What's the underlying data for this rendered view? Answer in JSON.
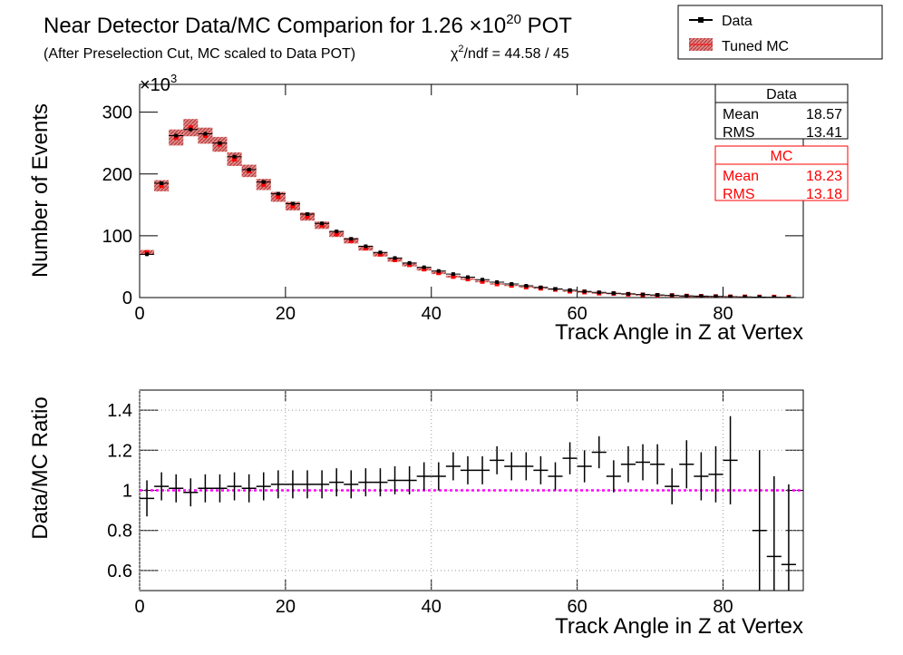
{
  "chart_data": [
    {
      "type": "histogram",
      "title": "Near Detector Data/MC Comparion for 1.26 ×10",
      "title_sup": "20",
      "title_end": " POT",
      "subtitle": "(After Preselection Cut, MC scaled to Data POT)",
      "chi2_symbol": "χ",
      "chi2_sup": "2",
      "chi2_text": "/ndf = 44.58 / 45",
      "y_multiplier": "×10",
      "y_multiplier_sup": "3",
      "xlabel": "Track Angle in Z at Vertex",
      "ylabel": "Number of Events",
      "x": [
        1,
        3,
        5,
        7,
        9,
        11,
        13,
        15,
        17,
        19,
        21,
        23,
        25,
        27,
        29,
        31,
        33,
        35,
        37,
        39,
        41,
        43,
        45,
        47,
        49,
        51,
        53,
        55,
        57,
        59,
        61,
        63,
        65,
        67,
        69,
        71,
        73,
        75,
        77,
        79,
        81,
        83,
        85,
        87,
        89
      ],
      "series": [
        {
          "name": "Data",
          "color": "#000000",
          "values": [
            70,
            185,
            262,
            272,
            265,
            250,
            228,
            207,
            187,
            168,
            152,
            135,
            120,
            107,
            95,
            83,
            73,
            64,
            56,
            49,
            43,
            38,
            33,
            29,
            25,
            22,
            19,
            16.5,
            14,
            12,
            10,
            8.5,
            7,
            6,
            5,
            4.2,
            3.5,
            2.8,
            2.3,
            1.8,
            1.5,
            1.1,
            0.8,
            0.6,
            0.4
          ]
        },
        {
          "name": "Tuned MC",
          "color": "#ff0000",
          "values": [
            73,
            181,
            259,
            275,
            262,
            248,
            224,
            205,
            183,
            163,
            148,
            131,
            117,
            103,
            92,
            80,
            70,
            61,
            53,
            46,
            40,
            34,
            30,
            26,
            22,
            19.6,
            17,
            15,
            13.1,
            10.3,
            8.9,
            7.1,
            6.5,
            5.3,
            4.4,
            3.7,
            3.4,
            2.5,
            2.1,
            1.7,
            1.3,
            1.2,
            1,
            0.9,
            0.6
          ],
          "errors": [
            4,
            9,
            13,
            14,
            13,
            12,
            11,
            10,
            9,
            8,
            7,
            6.5,
            6,
            5,
            4.5,
            4,
            3.5,
            3,
            2.6,
            2.3,
            2,
            1.7,
            1.5,
            1.3,
            1.1,
            1,
            0.9,
            0.8,
            0.7,
            0.5,
            0.45,
            0.35,
            0.3,
            0.27,
            0.22,
            0.2,
            0.17,
            0.13,
            0.1,
            0.1,
            0.1,
            0.1,
            0.1,
            0.1,
            0.1
          ]
        }
      ],
      "xlim": [
        0,
        91
      ],
      "xticks": [
        0,
        20,
        40,
        60,
        80
      ],
      "ylim": [
        0,
        345
      ],
      "yticks": [
        0,
        100,
        200,
        300
      ],
      "stats": [
        {
          "name": "Data",
          "color": "#000000",
          "rows": [
            [
              "Mean",
              "18.57"
            ],
            [
              "RMS",
              "13.41"
            ]
          ]
        },
        {
          "name": "MC",
          "color": "#ff0000",
          "rows": [
            [
              "Mean",
              "18.23"
            ],
            [
              "RMS",
              "13.18"
            ]
          ]
        }
      ]
    },
    {
      "type": "errorbar",
      "xlabel": "Track Angle in Z at Vertex",
      "ylabel": "Data/MC Ratio",
      "x": [
        1,
        3,
        5,
        7,
        9,
        11,
        13,
        15,
        17,
        19,
        21,
        23,
        25,
        27,
        29,
        31,
        33,
        35,
        37,
        39,
        41,
        43,
        45,
        47,
        49,
        51,
        53,
        55,
        57,
        59,
        61,
        63,
        65,
        67,
        69,
        71,
        73,
        75,
        77,
        79,
        81,
        83,
        85,
        87,
        89
      ],
      "values": [
        0.96,
        1.02,
        1.01,
        0.99,
        1.01,
        1.01,
        1.02,
        1.01,
        1.02,
        1.03,
        1.03,
        1.03,
        1.03,
        1.04,
        1.03,
        1.04,
        1.04,
        1.05,
        1.05,
        1.07,
        1.07,
        1.12,
        1.1,
        1.1,
        1.15,
        1.12,
        1.12,
        1.1,
        1.07,
        1.16,
        1.12,
        1.19,
        1.07,
        1.13,
        1.14,
        1.13,
        1.02,
        1.13,
        1.07,
        1.08,
        1.15,
        null,
        0.8,
        0.67,
        0.63
      ],
      "errors": [
        0.09,
        0.07,
        0.07,
        0.07,
        0.07,
        0.07,
        0.07,
        0.07,
        0.07,
        0.07,
        0.07,
        0.07,
        0.07,
        0.07,
        0.07,
        0.07,
        0.07,
        0.07,
        0.07,
        0.07,
        0.07,
        0.07,
        0.07,
        0.07,
        0.07,
        0.07,
        0.07,
        0.07,
        0.07,
        0.08,
        0.08,
        0.08,
        0.08,
        0.09,
        0.09,
        0.1,
        0.09,
        0.12,
        0.12,
        0.14,
        0.22,
        null,
        0.4,
        0.4,
        0.4
      ],
      "color": "#000000",
      "reference_line": 1,
      "reference_color": "#ff00ff",
      "xlim": [
        0,
        91
      ],
      "xticks": [
        0,
        20,
        40,
        60,
        80
      ],
      "ylim": [
        0.5,
        1.5
      ],
      "yticks": [
        0.6,
        0.8,
        1,
        1.2,
        1.4
      ],
      "grid": true
    }
  ]
}
